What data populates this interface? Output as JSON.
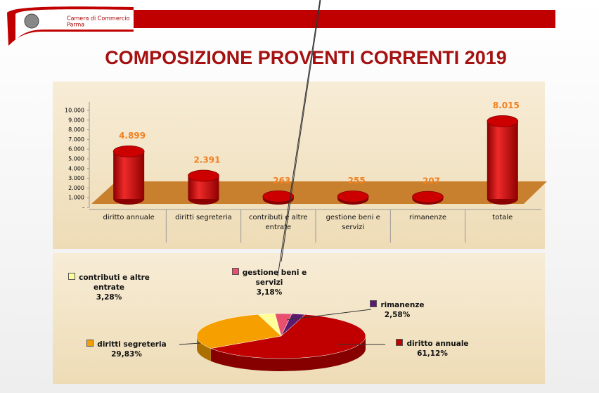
{
  "header": {
    "org": "Camera di Commercio",
    "city": "Parma"
  },
  "chart_data": [
    {
      "type": "bar",
      "title": "COMPOSIZIONE PROVENTI CORRENTI 2019",
      "categories": [
        "diritto annuale",
        "diritti segreteria",
        "contributi e altre entrate",
        "gestione beni e servizi",
        "rimanenze",
        "totale"
      ],
      "values": [
        4899,
        2391,
        263,
        255,
        207,
        8015
      ],
      "value_labels": [
        "4.899",
        "2.391",
        "263",
        "255",
        "207",
        "8.015"
      ],
      "color": "#cc0000",
      "ylim": [
        0,
        10000
      ],
      "yticks": [
        {
          "value": 0,
          "label": "-"
        },
        {
          "value": 1000,
          "label": "1.000"
        },
        {
          "value": 2000,
          "label": "2.000"
        },
        {
          "value": 3000,
          "label": "3.000"
        },
        {
          "value": 4000,
          "label": "4.000"
        },
        {
          "value": 5000,
          "label": "5.000"
        },
        {
          "value": 6000,
          "label": "6.000"
        },
        {
          "value": 7000,
          "label": "7.000"
        },
        {
          "value": 8000,
          "label": "8.000"
        },
        {
          "value": 9000,
          "label": "9.000"
        },
        {
          "value": 10000,
          "label": "10.000"
        }
      ]
    },
    {
      "type": "pie",
      "categories": [
        "contributi e altre entrate",
        "gestione beni e servizi",
        "rimanenze",
        "diritto annuale",
        "diritti segreteria"
      ],
      "values": [
        3.28,
        3.18,
        2.58,
        61.12,
        29.83
      ],
      "value_labels": [
        "3,28%",
        "3,18%",
        "2,58%",
        "61,12%",
        "29,83%"
      ],
      "colors": [
        "#ffff99",
        "#e8506e",
        "#5a1a6e",
        "#c00000",
        "#f5a000"
      ]
    }
  ]
}
